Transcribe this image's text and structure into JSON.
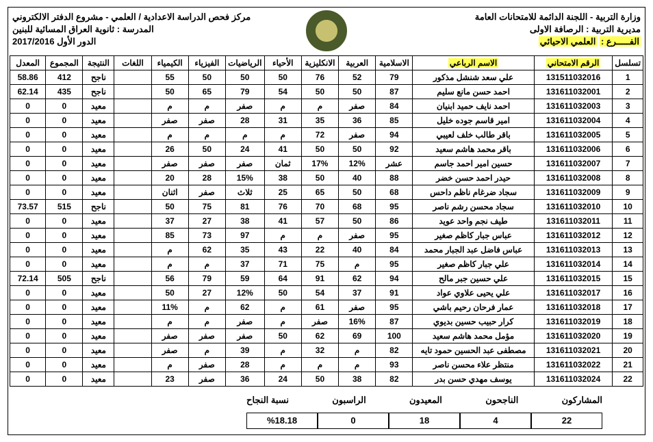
{
  "header": {
    "ministry": "وزارة التربية - اللجنة الدائمة للامتحانات العامة",
    "center": "مركز فحص الدراسة الاعدادية  / العلمي - مشروع الدفتر الالكتروني",
    "directorate_lbl": "مديرية التربية :",
    "directorate_val": "الرصافة الاولى",
    "school_lbl": "المدرسة :",
    "school_val": "ثانوية العراق المسائية للبنين",
    "branch_lbl": "الفـــــرع :",
    "branch_val": "العلمي الاحيائي",
    "round": "الدور الأول 2017/2016"
  },
  "columns": [
    "تسلسل",
    "الرقم الامتحاني",
    "الاسم الرباعي",
    "الاسلامية",
    "العربية",
    "الانكليزية",
    "الأحياء",
    "الرياضيات",
    "الفيزياء",
    "الكيمياء",
    "اللغات",
    "النتيجة",
    "المجموع",
    "المعدل"
  ],
  "rows": [
    [
      "1",
      "131511032016",
      "علي سعد شنشل مذكور",
      "79",
      "52",
      "76",
      "50",
      "50",
      "50",
      "55",
      "",
      "ناجح",
      "412",
      "58.86"
    ],
    [
      "2",
      "131611032001",
      "احمد حسن مانع سليم",
      "87",
      "50",
      "50",
      "54",
      "79",
      "65",
      "50",
      "",
      "ناجح",
      "435",
      "62.14"
    ],
    [
      "3",
      "131611032003",
      "احمد نايف حميد ابنيان",
      "84",
      "صفر",
      "م",
      "م",
      "صفر",
      "م",
      "م",
      "",
      "معيد",
      "0",
      "0"
    ],
    [
      "4",
      "131611032004",
      "امير قاسم جوده خليل",
      "85",
      "36",
      "35",
      "31",
      "28",
      "صفر",
      "صفر",
      "",
      "معيد",
      "0",
      "0"
    ],
    [
      "5",
      "131611032005",
      "باقر طالب خلف لعيبي",
      "94",
      "صفر",
      "72",
      "م",
      "م",
      "م",
      "م",
      "",
      "معيد",
      "0",
      "0"
    ],
    [
      "6",
      "131611032006",
      "باقر محمد هاشم سعيد",
      "92",
      "50",
      "50",
      "41",
      "24",
      "50",
      "26",
      "",
      "معيد",
      "0",
      "0"
    ],
    [
      "7",
      "131611032007",
      "حسين امير احمد جاسم",
      "عشر",
      "12%",
      "17%",
      "ثمان",
      "صفر",
      "صفر",
      "صفر",
      "",
      "معيد",
      "0",
      "0"
    ],
    [
      "8",
      "131611032008",
      "حيدر احمد حسن خضر",
      "88",
      "40",
      "50",
      "38",
      "15%",
      "28",
      "20",
      "",
      "معيد",
      "0",
      "0"
    ],
    [
      "9",
      "131611032009",
      "سجاد ضرغام ناظم داحس",
      "68",
      "50",
      "65",
      "25",
      "ثلاث",
      "صفر",
      "اثنان",
      "",
      "معيد",
      "0",
      "0"
    ],
    [
      "10",
      "131611032010",
      "سجاد محسن رشم ناصر",
      "95",
      "68",
      "70",
      "76",
      "81",
      "75",
      "50",
      "",
      "ناجح",
      "515",
      "73.57"
    ],
    [
      "11",
      "131611032011",
      "طيف نجم واحد عويد",
      "86",
      "50",
      "57",
      "41",
      "38",
      "27",
      "37",
      "",
      "معيد",
      "0",
      "0"
    ],
    [
      "12",
      "131611032012",
      "عباس جبار كاظم صغير",
      "95",
      "صفر",
      "م",
      "م",
      "97",
      "73",
      "85",
      "",
      "معيد",
      "0",
      "0"
    ],
    [
      "13",
      "131611032013",
      "عباس فاضل عبد الجبار محمد",
      "84",
      "40",
      "22",
      "43",
      "35",
      "62",
      "م",
      "",
      "معيد",
      "0",
      "0"
    ],
    [
      "14",
      "131611032014",
      "علي جبار كاظم صغير",
      "95",
      "م",
      "75",
      "71",
      "37",
      "م",
      "م",
      "",
      "معيد",
      "0",
      "0"
    ],
    [
      "15",
      "131611032015",
      "علي حسين جبر مالح",
      "94",
      "62",
      "91",
      "64",
      "59",
      "79",
      "56",
      "",
      "ناجح",
      "505",
      "72.14"
    ],
    [
      "16",
      "131611032017",
      "علي يحيى علاوي عواد",
      "91",
      "37",
      "54",
      "50",
      "12%",
      "27",
      "50",
      "",
      "معيد",
      "0",
      "0"
    ],
    [
      "17",
      "131611032018",
      "عمار فرحان رحيم باشي",
      "95",
      "صفر",
      "61",
      "م",
      "62",
      "م",
      "11%",
      "",
      "معيد",
      "0",
      "0"
    ],
    [
      "18",
      "131611032019",
      "كرار حبيب حسين بديوي",
      "87",
      "16%",
      "صفر",
      "م",
      "صفر",
      "م",
      "م",
      "",
      "معيد",
      "0",
      "0"
    ],
    [
      "19",
      "131611032020",
      "مؤمل محمد هاشم سعيد",
      "100",
      "69",
      "62",
      "50",
      "صفر",
      "صفر",
      "صفر",
      "",
      "معيد",
      "0",
      "0"
    ],
    [
      "20",
      "131611032021",
      "مصطفى عبد الحسين حمود تايه",
      "82",
      "م",
      "32",
      "م",
      "39",
      "م",
      "صفر",
      "",
      "معيد",
      "0",
      "0"
    ],
    [
      "21",
      "131611032022",
      "منتظر علاء محسن ناصر",
      "93",
      "م",
      "م",
      "م",
      "28",
      "صفر",
      "م",
      "",
      "معيد",
      "0",
      "0"
    ],
    [
      "22",
      "131611032024",
      "يوسف مهدي حسن بدر",
      "82",
      "38",
      "50",
      "24",
      "36",
      "صفر",
      "23",
      "",
      "معيد",
      "0",
      "0"
    ]
  ],
  "summary": {
    "participants_lbl": "المشاركون",
    "passed_lbl": "الناجحون",
    "repeat_lbl": "المعيدون",
    "failed_lbl": "الراسبون",
    "rate_lbl": "نسبة النجاح",
    "participants": "22",
    "passed": "4",
    "repeat": "18",
    "failed": "0",
    "rate": "%18.18"
  }
}
